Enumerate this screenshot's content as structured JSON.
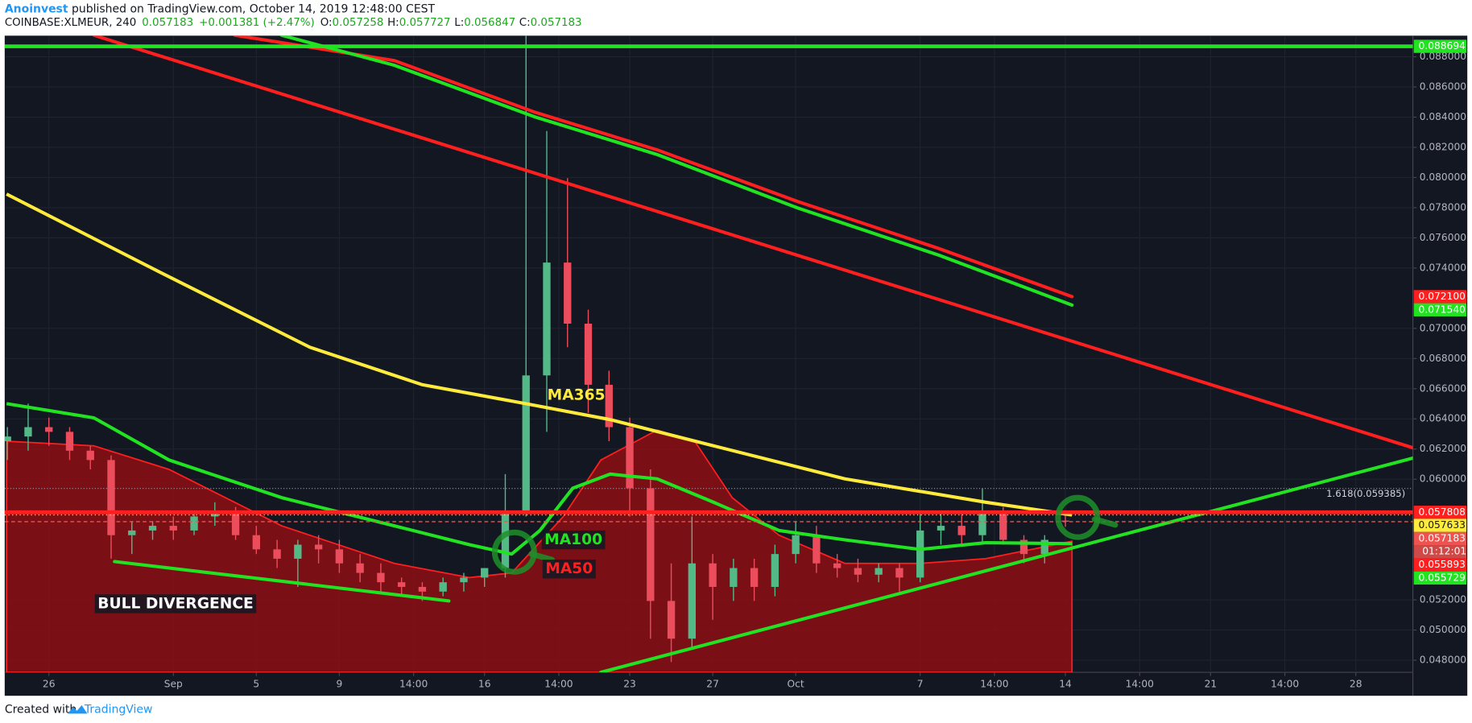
{
  "header": {
    "author": "Anoinvest",
    "published": " published on TradingView.com, October 14, 2019 12:48:00 CEST",
    "symbol": "COINBASE:XLMEUR, 240",
    "last": "0.057183",
    "change": "+0.001381 (+2.47%)",
    "ohlc": [
      {
        "label": "O:",
        "value": "0.057258"
      },
      {
        "label": "H:",
        "value": "0.057727"
      },
      {
        "label": "L:",
        "value": "0.056847"
      },
      {
        "label": "C:",
        "value": "0.057183"
      }
    ]
  },
  "footer": {
    "created": "Created with",
    "brand": "TradingView"
  },
  "chart_data": {
    "type": "candlestick",
    "x": [
      -2,
      -1,
      0,
      1,
      2,
      3,
      4,
      5,
      6,
      7,
      8,
      9,
      10,
      11,
      12,
      13,
      14,
      15,
      16,
      17,
      18,
      19,
      20,
      21,
      22,
      23,
      24,
      25,
      26,
      27,
      28,
      29,
      30,
      31,
      32,
      33,
      34,
      35,
      36,
      37,
      38,
      39,
      40,
      41,
      42,
      43,
      44,
      45,
      46,
      47,
      48,
      49
    ],
    "open": [
      0.06252,
      0.06283,
      0.06345,
      0.06314,
      0.06189,
      0.06127,
      0.05629,
      0.0566,
      0.05691,
      0.0566,
      0.05753,
      0.05785,
      0.05629,
      0.05535,
      0.05473,
      0.05566,
      0.05535,
      0.05442,
      0.05379,
      0.05317,
      0.05286,
      0.05255,
      0.05317,
      0.05348,
      0.05411,
      0.05785,
      0.06688,
      0.07436,
      0.07031,
      0.06626,
      0.06345,
      0.0594,
      0.05193,
      0.04943,
      0.05442,
      0.05286,
      0.05411,
      0.05286,
      0.05504,
      0.05629,
      0.05442,
      0.05411,
      0.05367,
      0.05411,
      0.05348,
      0.0566,
      0.05691,
      0.05629,
      0.05785,
      0.05598,
      0.05504,
      0.057258
    ],
    "high": [
      0.06345,
      0.06501,
      0.06408,
      0.06345,
      0.06221,
      0.06158,
      0.05722,
      0.05722,
      0.05753,
      0.05785,
      0.05847,
      0.05816,
      0.05691,
      0.05598,
      0.05598,
      0.05629,
      0.05598,
      0.05504,
      0.05442,
      0.05348,
      0.05317,
      0.05348,
      0.05379,
      0.05411,
      0.06034,
      0.08943,
      0.08308,
      0.07996,
      0.07124,
      0.06719,
      0.06408,
      0.06065,
      0.05442,
      0.05753,
      0.05504,
      0.05473,
      0.05473,
      0.05566,
      0.05722,
      0.05691,
      0.05504,
      0.05473,
      0.05442,
      0.05442,
      0.05785,
      0.05785,
      0.05785,
      0.0594,
      0.05816,
      0.05629,
      0.05629,
      0.057727
    ],
    "low": [
      0.06127,
      0.06189,
      0.06221,
      0.06127,
      0.06065,
      0.05473,
      0.05504,
      0.05598,
      0.05598,
      0.05629,
      0.05691,
      0.05598,
      0.05504,
      0.05411,
      0.05286,
      0.05442,
      0.05379,
      0.05317,
      0.05255,
      0.05224,
      0.05193,
      0.05224,
      0.05255,
      0.05286,
      0.05348,
      0.05753,
      0.06314,
      0.06875,
      0.06439,
      0.06252,
      0.05753,
      0.04943,
      0.04788,
      0.04881,
      0.05068,
      0.05193,
      0.05193,
      0.05224,
      0.05442,
      0.05379,
      0.05348,
      0.05317,
      0.05317,
      0.05255,
      0.05317,
      0.05566,
      0.05566,
      0.05566,
      0.05566,
      0.05442,
      0.05442,
      0.056847
    ],
    "close": [
      0.06283,
      0.06345,
      0.06314,
      0.06189,
      0.06127,
      0.05629,
      0.0566,
      0.05691,
      0.0566,
      0.05753,
      0.05785,
      0.05629,
      0.05535,
      0.05473,
      0.05566,
      0.05535,
      0.05442,
      0.05379,
      0.05317,
      0.05286,
      0.05255,
      0.05317,
      0.05348,
      0.05411,
      0.05785,
      0.06688,
      0.07436,
      0.07031,
      0.06626,
      0.06345,
      0.0594,
      0.05193,
      0.04943,
      0.05442,
      0.05286,
      0.05411,
      0.05286,
      0.05504,
      0.05629,
      0.05442,
      0.05411,
      0.05367,
      0.05411,
      0.05348,
      0.0566,
      0.05691,
      0.05629,
      0.05785,
      0.05598,
      0.05504,
      0.05598,
      0.057183
    ],
    "up_color": "#53b987",
    "down_color": "#eb4d5c",
    "xlim": [
      -2.04,
      65.75
    ],
    "xticks": [
      {
        "value": 0,
        "label": "26"
      },
      {
        "value": 6,
        "label": "Sep"
      },
      {
        "value": 10,
        "label": "5"
      },
      {
        "value": 14,
        "label": "9"
      },
      {
        "value": 17.58,
        "label": "14:00"
      },
      {
        "value": 21,
        "label": "16"
      },
      {
        "value": 24.58,
        "label": "14:00"
      },
      {
        "value": 28,
        "label": "23"
      },
      {
        "value": 32,
        "label": "27"
      },
      {
        "value": 36,
        "label": "Oct"
      },
      {
        "value": 42,
        "label": "7"
      },
      {
        "value": 45.58,
        "label": "14:00"
      },
      {
        "value": 49,
        "label": "14"
      },
      {
        "value": 52.58,
        "label": "14:00"
      },
      {
        "value": 56,
        "label": "21"
      },
      {
        "value": 59.58,
        "label": "14:00"
      },
      {
        "value": 63,
        "label": "28"
      }
    ],
    "ylim": [
      0.0472,
      0.0894
    ],
    "yticks": [
      {
        "value": 0.048,
        "label": "0.048000"
      },
      {
        "value": 0.05,
        "label": "0.050000"
      },
      {
        "value": 0.052,
        "label": "0.052000"
      },
      {
        "value": 0.06,
        "label": "0.060000"
      },
      {
        "value": 0.062,
        "label": "0.062000"
      },
      {
        "value": 0.064,
        "label": "0.064000"
      },
      {
        "value": 0.066,
        "label": "0.066000"
      },
      {
        "value": 0.068,
        "label": "0.068000"
      },
      {
        "value": 0.07,
        "label": "0.070000"
      },
      {
        "value": 0.074,
        "label": "0.074000"
      },
      {
        "value": 0.076,
        "label": "0.076000"
      },
      {
        "value": 0.078,
        "label": "0.078000"
      },
      {
        "value": 0.08,
        "label": "0.080000"
      },
      {
        "value": 0.082,
        "label": "0.082000"
      },
      {
        "value": 0.084,
        "label": "0.084000"
      },
      {
        "value": 0.086,
        "label": "0.086000"
      },
      {
        "value": 0.088,
        "label": "0.088000"
      }
    ],
    "grid": true,
    "series": [
      {
        "name": "MA365",
        "color": "#ffeb3b",
        "x": [
          -2.04,
          5.34,
          12.58,
          18.01,
          22.99,
          27.06,
          32.04,
          38.37,
          45.16,
          49.32
        ],
        "values": [
          0.0789,
          0.07373,
          0.06875,
          0.06626,
          0.06501,
          0.06395,
          0.06221,
          0.06002,
          0.05847,
          0.05763
        ]
      },
      {
        "name": "MA100",
        "color": "#22e322",
        "x": [
          -2.04,
          2.17,
          5.79,
          11.22,
          16.65,
          20.27,
          22.31,
          23.67,
          25.25,
          27.06,
          29.32,
          32.04,
          35.2,
          38.37,
          41.99,
          45.16,
          49.32
        ],
        "values": [
          0.06501,
          0.06407,
          0.06127,
          0.05878,
          0.05691,
          0.05566,
          0.05504,
          0.0566,
          0.0594,
          0.06034,
          0.06002,
          0.05847,
          0.0566,
          0.05598,
          0.05535,
          0.05579,
          0.05573
        ]
      },
      {
        "name": "MA50",
        "color": "#ff1f1f",
        "fill": "#8e0e14",
        "x": [
          -2.04,
          2.17,
          5.79,
          11.22,
          16.65,
          20.27,
          22.31,
          24.8,
          26.61,
          29.32,
          31.13,
          32.94,
          35.2,
          38.37,
          41.99,
          45.16,
          49.32
        ],
        "values": [
          0.06252,
          0.06221,
          0.06065,
          0.05691,
          0.05442,
          0.05348,
          0.05379,
          0.05753,
          0.06127,
          0.06326,
          0.06252,
          0.05878,
          0.05629,
          0.05442,
          0.05442,
          0.05473,
          0.05589
        ]
      }
    ],
    "trend_lines": [
      {
        "color": "#ff1f1f",
        "x": [
          8.96,
          16.65,
          23.44,
          29.32,
          36.11,
          42.9,
          49.32
        ],
        "values": [
          0.08943,
          0.08775,
          0.08432,
          0.08183,
          0.0784,
          0.07529,
          0.0721
        ]
      },
      {
        "color": "#22e322",
        "x": [
          11.22,
          16.65,
          23.44,
          29.32,
          36.11,
          42.9,
          49.32
        ],
        "values": [
          0.08943,
          0.08744,
          0.08401,
          0.08152,
          0.07797,
          0.07485,
          0.07154
        ]
      },
      {
        "color": "#ff1f1f",
        "x": [
          2.17,
          65.75
        ],
        "values": [
          0.08943,
          0.06208
        ]
      },
      {
        "color": "#22e322",
        "x": [
          26.61,
          65.75
        ],
        "values": [
          0.0472,
          0.0614
        ]
      },
      {
        "color": "#22e322",
        "x": [
          3.17,
          19.28
        ],
        "values": [
          0.05454,
          0.05193
        ]
      }
    ],
    "price_lines": [
      {
        "value": 0.088694,
        "label": "0.088694",
        "color": "#22e322",
        "style": "solid"
      },
      {
        "value": 0.0721,
        "label": "0.072100",
        "color": "#ff1f1f",
        "style": "none"
      },
      {
        "value": 0.07154,
        "label": "0.071540",
        "color": "#22e322",
        "style": "none"
      },
      {
        "value": 0.057808,
        "label": "0.057808",
        "color": "#ff1f1f",
        "style": "solid"
      },
      {
        "value": 0.057633,
        "label": "0.057633",
        "color": "#ffeb3b",
        "style": "dotted"
      },
      {
        "value": 0.057183,
        "label": "0.057183",
        "color": "#ef5350",
        "style": "dashed",
        "countdown": "01:12:01"
      },
      {
        "value": 0.055893,
        "label": "0.055893",
        "color": "#ff1f1f",
        "style": "none"
      },
      {
        "value": 0.055729,
        "label": "0.055729",
        "color": "#22e322",
        "style": "none"
      }
    ],
    "fib": {
      "value": 0.059385,
      "label": "1.618(0.059385)"
    },
    "annotation": "BULL DIVERGENCE"
  }
}
